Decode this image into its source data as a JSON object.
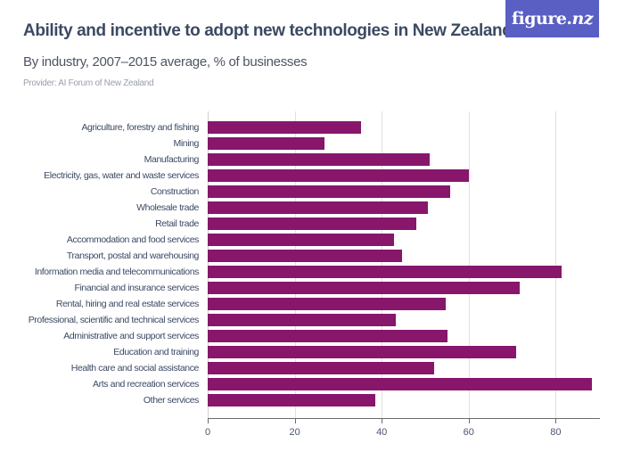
{
  "header": {
    "title": "Ability and incentive to adopt new technologies in New Zealand",
    "subtitle": "By industry, 2007–2015 average, % of businesses",
    "provider": "Provider: AI Forum of New Zealand",
    "logo_main": "figure.",
    "logo_suffix": "nz",
    "logo_bg": "#5a5fc4"
  },
  "chart_data": {
    "type": "bar",
    "orientation": "horizontal",
    "title": "Ability and incentive to adopt new technologies in New Zealand",
    "subtitle": "By industry, 2007–2015 average, % of businesses",
    "xlabel": "",
    "ylabel": "",
    "xlim": [
      0,
      90
    ],
    "xticks": [
      0,
      20,
      40,
      60,
      80
    ],
    "grid": true,
    "legend": null,
    "bar_color": "#88166b",
    "categories": [
      "Agriculture, forestry and fishing",
      "Mining",
      "Manufacturing",
      "Electricity, gas, water and waste services",
      "Construction",
      "Wholesale trade",
      "Retail trade",
      "Accommodation and food services",
      "Transport, postal and warehousing",
      "Information media and telecommunications",
      "Financial and insurance services",
      "Rental, hiring and real estate services",
      "Professional, scientific and technical services",
      "Administrative and support services",
      "Education and training",
      "Health care and social assistance",
      "Arts and recreation services",
      "Other services"
    ],
    "values": [
      35.2,
      26.8,
      51.0,
      60.1,
      55.8,
      50.7,
      47.9,
      42.9,
      44.6,
      81.3,
      71.7,
      54.7,
      43.2,
      55.1,
      70.8,
      52.0,
      88.4,
      38.6
    ]
  }
}
